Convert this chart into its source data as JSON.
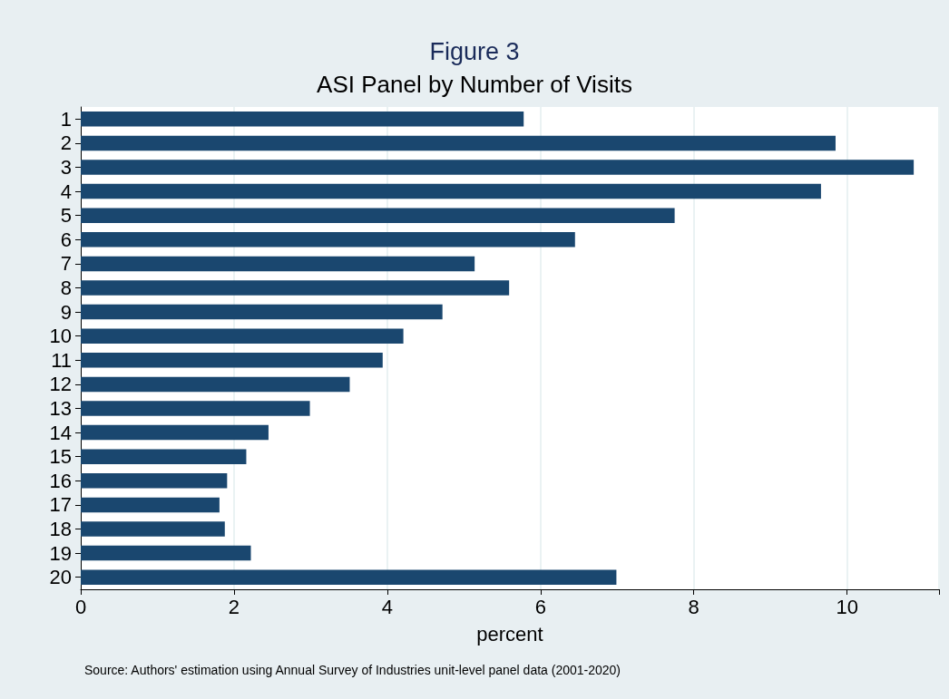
{
  "chart_data": {
    "type": "bar",
    "orientation": "horizontal",
    "title": "Figure 3",
    "subtitle": "ASI Panel by Number of Visits",
    "xlabel": "percent",
    "categories": [
      "1",
      "2",
      "3",
      "4",
      "5",
      "6",
      "7",
      "8",
      "9",
      "10",
      "11",
      "12",
      "13",
      "14",
      "15",
      "16",
      "17",
      "18",
      "19",
      "20"
    ],
    "values": [
      5.78,
      9.85,
      10.87,
      9.66,
      7.75,
      6.45,
      5.14,
      5.59,
      4.72,
      4.21,
      3.94,
      3.51,
      2.99,
      2.45,
      2.16,
      1.91,
      1.81,
      1.88,
      2.22,
      6.99
    ],
    "color": "#1a476f",
    "xlim": [
      0,
      11.2
    ],
    "xticks": [
      0,
      2,
      4,
      6,
      8,
      10
    ],
    "grid": "x",
    "annotations": [
      "Source: Authors' estimation using Annual Survey of Industries unit-level panel data (2001-2020)"
    ]
  }
}
